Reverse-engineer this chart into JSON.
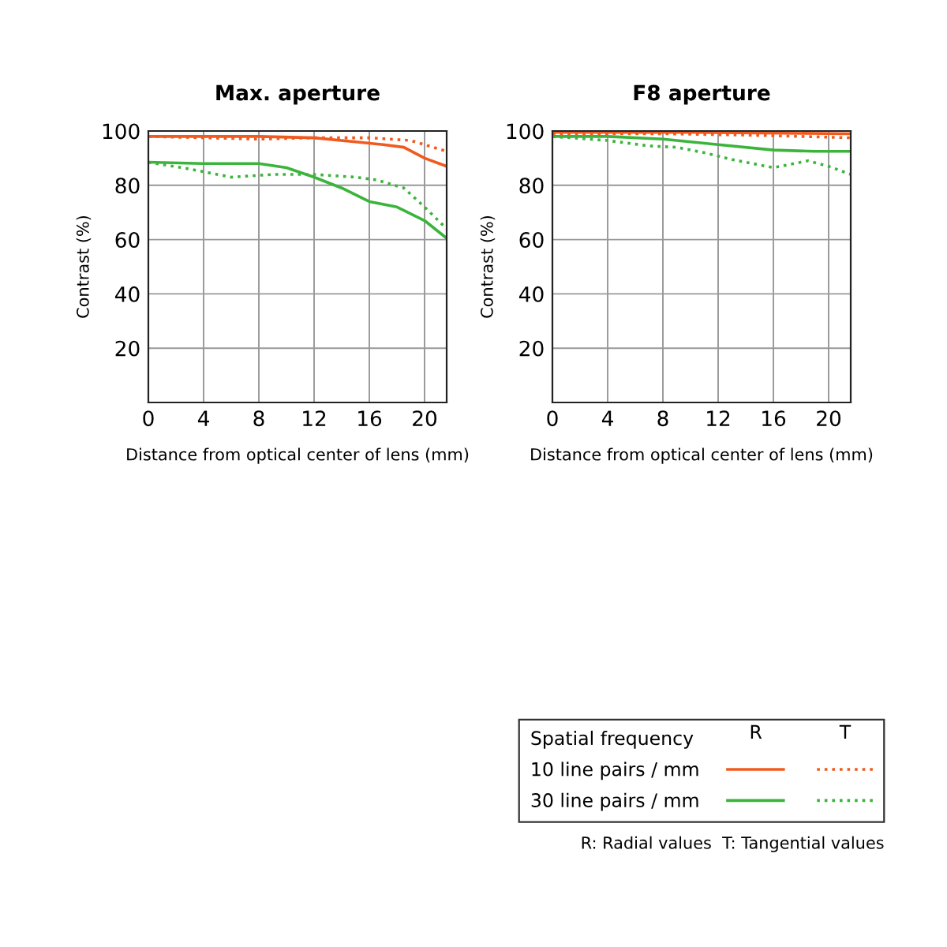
{
  "chart_data": [
    {
      "type": "line",
      "title": "Max. aperture",
      "xlabel": "Distance from optical center of lens (mm)",
      "ylabel": "Contrast (%)",
      "xlim": [
        0,
        21.6
      ],
      "ylim": [
        0,
        100
      ],
      "xticks": [
        0,
        4,
        8,
        12,
        16,
        20
      ],
      "yticks": [
        20,
        40,
        60,
        80,
        100
      ],
      "grid": true,
      "legend": false,
      "marker": "none",
      "series": [
        {
          "color": "#f05a1e",
          "line_style": "solid",
          "x": [
            0,
            8,
            12,
            15,
            17,
            18.5,
            20,
            21.6
          ],
          "values": [
            98,
            98,
            97.5,
            96,
            95,
            94,
            90,
            87
          ]
        },
        {
          "color": "#f05a1e",
          "line_style": "dotted",
          "x": [
            0,
            4,
            8,
            12,
            16,
            19,
            21.6
          ],
          "values": [
            98,
            97.5,
            97,
            97.5,
            97.5,
            96.5,
            92.5
          ]
        },
        {
          "color": "#3cb43c",
          "line_style": "solid",
          "x": [
            0,
            4,
            8,
            10,
            12,
            14,
            16,
            18,
            20,
            21.6
          ],
          "values": [
            88.5,
            88,
            88,
            86.5,
            83,
            79,
            74,
            72,
            67,
            60.5
          ]
        },
        {
          "color": "#3cb43c",
          "line_style": "dotted",
          "x": [
            0,
            3,
            6,
            9,
            12,
            15,
            16.5,
            18.5,
            20,
            21.6
          ],
          "values": [
            88.5,
            86,
            83,
            84,
            84,
            83,
            82,
            79,
            72,
            64
          ]
        }
      ]
    },
    {
      "type": "line",
      "title": "F8 aperture",
      "xlabel": "Distance from optical center of lens (mm)",
      "ylabel": "Contrast (%)",
      "xlim": [
        0,
        21.6
      ],
      "ylim": [
        0,
        100
      ],
      "xticks": [
        0,
        4,
        8,
        12,
        16,
        20
      ],
      "yticks": [
        20,
        40,
        60,
        80,
        100
      ],
      "grid": true,
      "legend": "bottom",
      "marker": "none",
      "legend_title": "Spatial frequency",
      "annotations": [
        "R",
        "T",
        "R: Radial values  T: Tangential values"
      ],
      "series": [
        {
          "name": "10 line pairs / mm",
          "color": "#f05a1e",
          "line_style": "solid",
          "x": [
            0,
            10,
            21.6
          ],
          "values": [
            99.5,
            99.5,
            99
          ]
        },
        {
          "color": "#f05a1e",
          "line_style": "dotted",
          "x": [
            0,
            8,
            14,
            18,
            21.6
          ],
          "values": [
            99,
            99,
            98.5,
            98,
            97.5
          ]
        },
        {
          "name": "30 line pairs / mm",
          "color": "#3cb43c",
          "line_style": "solid",
          "x": [
            0,
            4,
            8,
            12,
            16,
            19,
            21.6
          ],
          "values": [
            98,
            98,
            97,
            95,
            93,
            92.5,
            92.5
          ]
        },
        {
          "color": "#3cb43c",
          "line_style": "dotted",
          "x": [
            0,
            4,
            7,
            9,
            11,
            13,
            15.5,
            16,
            18,
            18.5,
            20,
            21.6
          ],
          "values": [
            98,
            96.5,
            94.5,
            94,
            92,
            89.5,
            87,
            86.5,
            88.5,
            89,
            87,
            84
          ]
        }
      ]
    }
  ]
}
